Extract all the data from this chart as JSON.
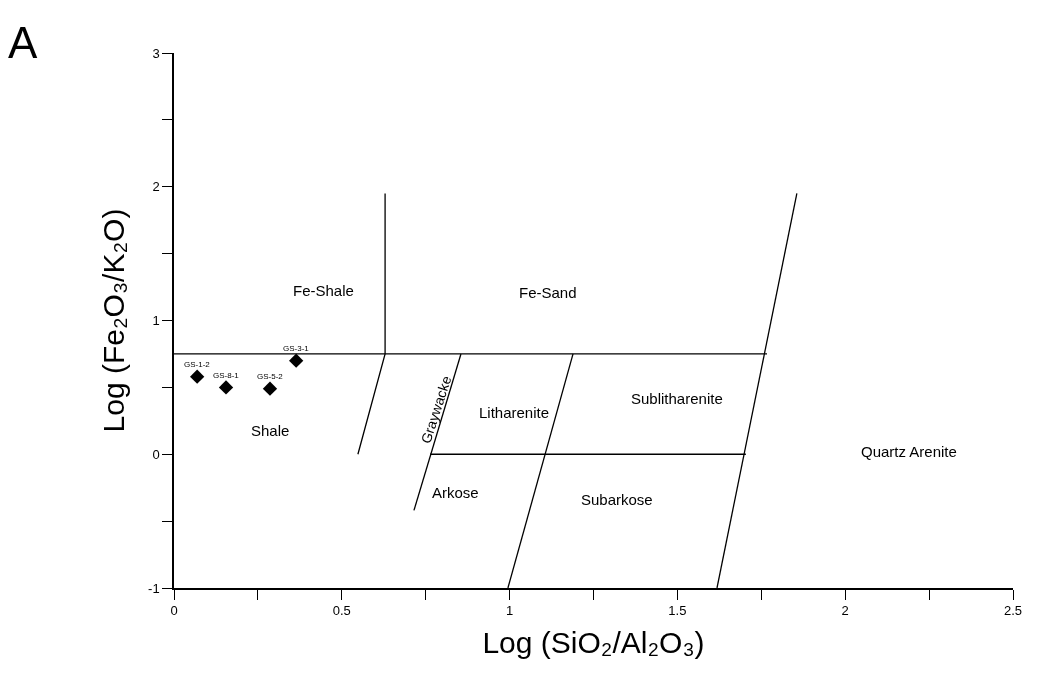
{
  "chart_data": {
    "type": "scatter",
    "xlabel": "Log (SiO₂/Al₂O₃)",
    "ylabel": "Log (Fe₂O₃/K₂O)",
    "xlim": [
      0,
      2.5
    ],
    "ylim": [
      -1,
      3
    ],
    "xticks": [
      0,
      {
        "value": 0.25,
        "label": null
      },
      0.5,
      {
        "value": 0.75,
        "label": null
      },
      1,
      {
        "value": 1.25,
        "label": null
      },
      1.5,
      {
        "value": 1.75,
        "label": null
      },
      2,
      {
        "value": 2.25,
        "label": null
      },
      2.5
    ],
    "yticks": [
      -1,
      {
        "value": -0.5,
        "label": null
      },
      0,
      {
        "value": 0.5,
        "label": null
      },
      1,
      {
        "value": 1.5,
        "label": null
      },
      2,
      {
        "value": 2.5,
        "label": null
      },
      3
    ],
    "series": [
      {
        "marker": "diamond",
        "color": "#000000",
        "x": [
          0.069,
          0.155,
          0.286,
          0.364
        ],
        "values": [
          0.58,
          0.5,
          0.49,
          0.7
        ]
      },
      {
        "type": "line",
        "marker": "none",
        "color": "#000000",
        "x": [
          0,
          1.767
        ],
        "values": [
          0.75,
          0.75
        ]
      },
      {
        "type": "line",
        "marker": "none",
        "color": "#000000",
        "x": [
          0.548,
          0.629,
          0.629
        ],
        "values": [
          0,
          0.75,
          1.95
        ]
      },
      {
        "type": "line",
        "marker": "none",
        "color": "#000000",
        "x": [
          0.715,
          0.855
        ],
        "values": [
          -0.42,
          0.75
        ]
      },
      {
        "type": "line",
        "marker": "none",
        "color": "#000000",
        "x": [
          0.995,
          1.189
        ],
        "values": [
          -1,
          0.75
        ]
      },
      {
        "type": "line",
        "marker": "none",
        "color": "#000000",
        "x": [
          1.618,
          1.856
        ],
        "values": [
          -1,
          1.95
        ]
      },
      {
        "type": "line",
        "marker": "none",
        "color": "#000000",
        "x": [
          0.763,
          1.704
        ],
        "values": [
          0,
          0
        ]
      }
    ],
    "annotations": [
      "A",
      "Fe-Shale",
      "Graywacke",
      "Fe-Sand",
      "Litharenite",
      "Sublitharenite",
      "Shale",
      "Arkose",
      "Subarkose",
      "Quartz Arenite",
      {
        "text": "GS-1-2",
        "x": 0.069,
        "y": 0.58
      },
      {
        "text": "GS-8-1",
        "x": 0.155,
        "y": 0.5
      },
      {
        "text": "GS-5-2",
        "x": 0.286,
        "y": 0.49
      },
      {
        "text": "GS-3-1",
        "x": 0.364,
        "y": 0.7
      }
    ]
  }
}
